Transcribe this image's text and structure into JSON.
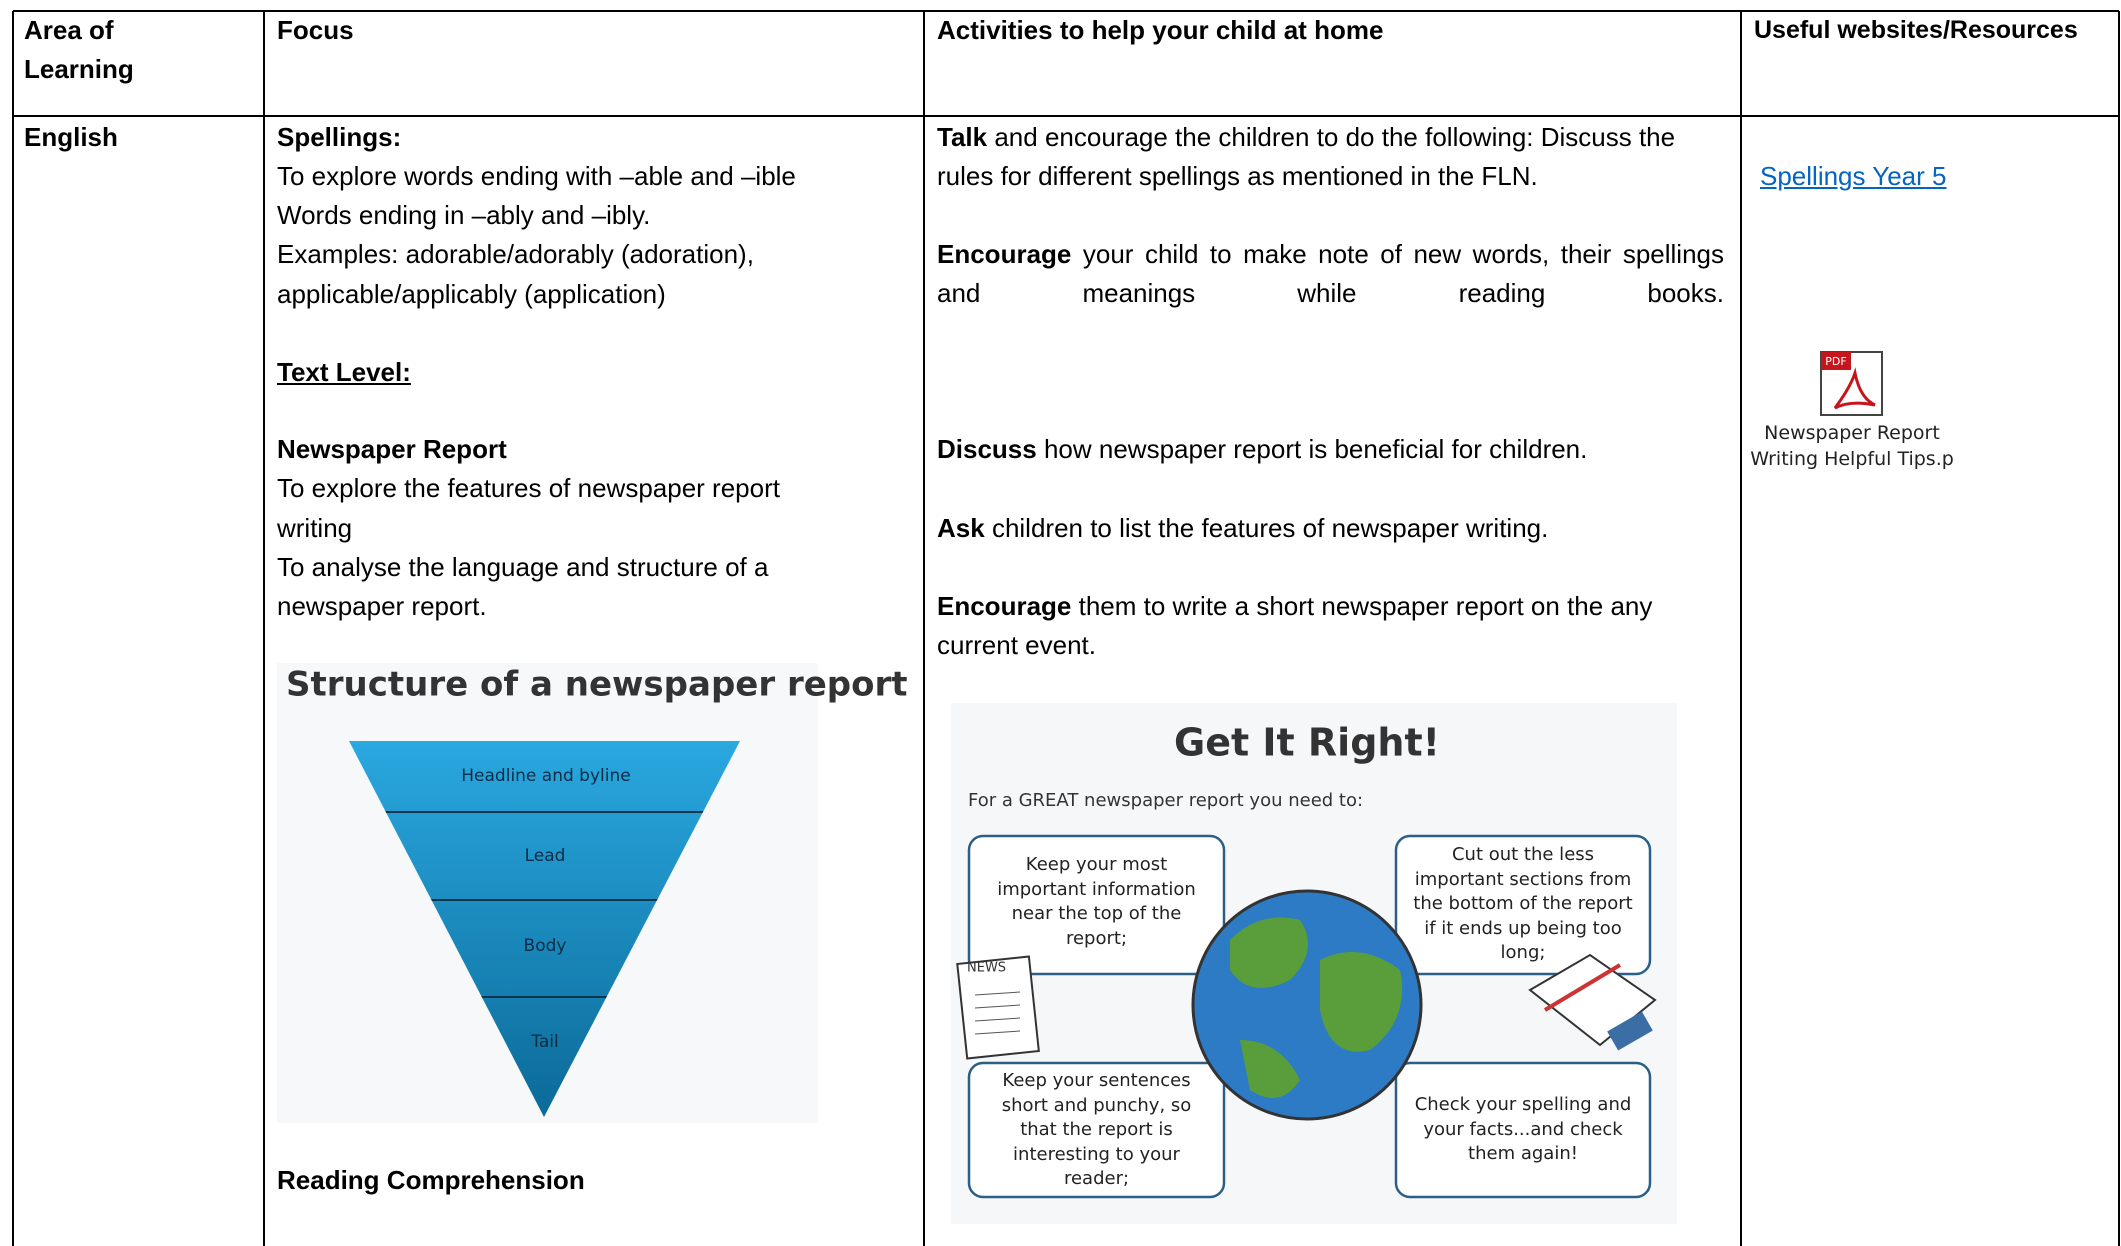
{
  "table": {
    "header": [
      "Area of Learning",
      "Focus",
      "Activities to help your child at home",
      "Useful websites/Resources"
    ],
    "rows": [
      {
        "area": "English",
        "focus": {
          "spellings_heading": "Spellings:",
          "spellings_lines": [
            "To explore words ending with –able and –ible",
            "Words ending in –ably and –ibly.",
            "Examples: adorable/adorably (adoration),",
            "applicable/applicably (application)"
          ],
          "text_level": "Text Level:",
          "newspaper_heading": "Newspaper Report",
          "newspaper_lines": [
            "To explore the features of newspaper report",
            "writing",
            "To analyse the language and structure of a",
            "newspaper report."
          ],
          "pyramid": {
            "title": "Structure of a newspaper report",
            "layers": [
              "Headline and byline",
              "Lead",
              "Body",
              "Tail"
            ]
          },
          "reading": "Reading Comprehension"
        },
        "activities": {
          "paragraphs": [
            {
              "bold": "Talk",
              "text": "and encourage the children to do the following: Discuss the rules for different spellings as mentioned in the FLN."
            },
            {
              "bold": "Encourage",
              "text": "your child to make note of new words, their spellings and meanings while reading books."
            },
            {
              "bold": "Discuss",
              "text": "how newspaper report is beneficial for children."
            },
            {
              "bold": "Ask",
              "text": "children to list the features of newspaper writing."
            },
            {
              "bold": "Encourage",
              "text": "them to write a short newspaper report on the any current event."
            }
          ],
          "infographic": {
            "title": "Get It Right!",
            "intro": "For a GREAT newspaper report you need to:",
            "boxes": [
              "Keep your most important information near the top of the report;",
              "Cut out the less important sections from the bottom of the report if it ends up being too long;",
              "Keep your sentences short and punchy, so that the report is interesting to your reader;",
              "Check your spelling and your facts...and check them again!"
            ],
            "news": "NEWS"
          }
        },
        "resources": {
          "link": "Spellings Year 5",
          "attachment": {
            "icon_label": "PDF",
            "file_name": "Newspaper Report Writing Helpful Tips.p"
          }
        }
      }
    ]
  }
}
